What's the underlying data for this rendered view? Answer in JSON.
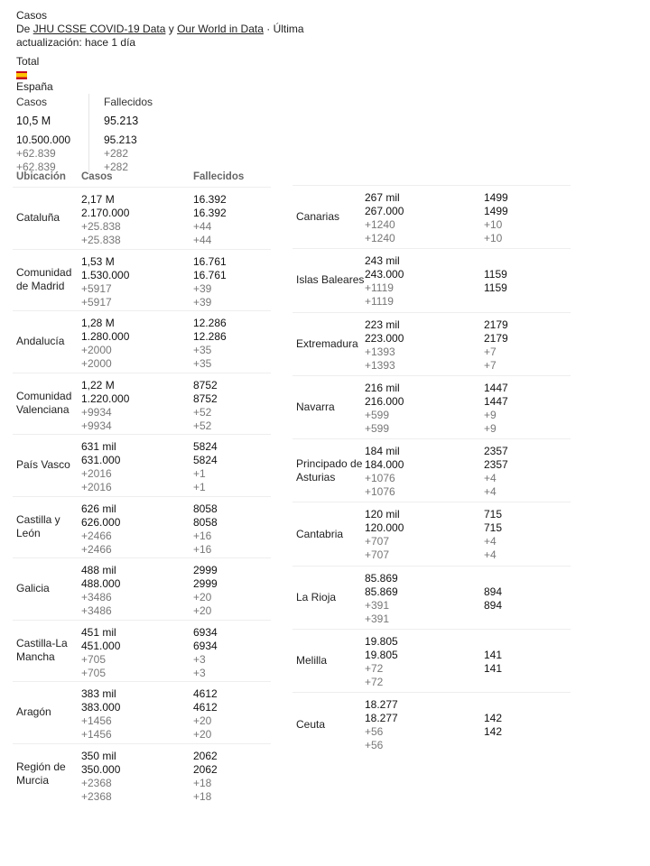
{
  "header": {
    "title": "Casos",
    "source_prefix": "De",
    "source1": "JHU CSSE COVID-19 Data",
    "source_and": "y",
    "source2": "Our World in Data",
    "updated": "· Última actualización: hace 1 día",
    "total_label": "Total",
    "flag_icon": "spain-flag-icon",
    "country": "España"
  },
  "summary": {
    "cases_label": "Casos",
    "deaths_label": "Fallecidos",
    "cases_short": "10,5 M",
    "cases_full": "10.500.000",
    "cases_delta": "+62.839",
    "deaths_short": "95.213",
    "deaths_full": "95.213",
    "deaths_delta": "+282"
  },
  "table_headers": {
    "location": "Ubicación",
    "cases": "Casos",
    "deaths": "Fallecidos"
  },
  "left_rows": [
    {
      "name": "Cataluña",
      "cases_short": "2,17 M",
      "cases_full": "2.170.000",
      "cases_delta": "+25.838",
      "deaths": "16.392",
      "deaths_delta": "+44"
    },
    {
      "name": "Comunidad de Madrid",
      "cases_short": "1,53 M",
      "cases_full": "1.530.000",
      "cases_delta": "+5917",
      "deaths": "16.761",
      "deaths_delta": "+39"
    },
    {
      "name": "Andalucía",
      "cases_short": "1,28 M",
      "cases_full": "1.280.000",
      "cases_delta": "+2000",
      "deaths": "12.286",
      "deaths_delta": "+35"
    },
    {
      "name": "Comunidad Valenciana",
      "cases_short": "1,22 M",
      "cases_full": "1.220.000",
      "cases_delta": "+9934",
      "deaths": "8752",
      "deaths_delta": "+52"
    },
    {
      "name": "País Vasco",
      "cases_short": "631 mil",
      "cases_full": "631.000",
      "cases_delta": "+2016",
      "deaths": "5824",
      "deaths_delta": "+1"
    },
    {
      "name": "Castilla y León",
      "cases_short": "626 mil",
      "cases_full": "626.000",
      "cases_delta": "+2466",
      "deaths": "8058",
      "deaths_delta": "+16"
    },
    {
      "name": "Galicia",
      "cases_short": "488 mil",
      "cases_full": "488.000",
      "cases_delta": "+3486",
      "deaths": "2999",
      "deaths_delta": "+20"
    },
    {
      "name": "Castilla-La Mancha",
      "cases_short": "451 mil",
      "cases_full": "451.000",
      "cases_delta": "+705",
      "deaths": "6934",
      "deaths_delta": "+3"
    },
    {
      "name": "Aragón",
      "cases_short": "383 mil",
      "cases_full": "383.000",
      "cases_delta": "+1456",
      "deaths": "4612",
      "deaths_delta": "+20"
    },
    {
      "name": "Región de Murcia",
      "cases_short": "350 mil",
      "cases_full": "350.000",
      "cases_delta": "+2368",
      "deaths": "2062",
      "deaths_delta": "+18"
    }
  ],
  "right_rows": [
    {
      "name": "Canarias",
      "cases_short": "267 mil",
      "cases_full": "267.000",
      "cases_delta": "+1240",
      "deaths": "1499",
      "deaths_delta": "+10"
    },
    {
      "name": "Islas Baleares",
      "cases_short": "243 mil",
      "cases_full": "243.000",
      "cases_delta": "+1119",
      "deaths": "1159",
      "deaths_delta": ""
    },
    {
      "name": "Extremadura",
      "cases_short": "223 mil",
      "cases_full": "223.000",
      "cases_delta": "+1393",
      "deaths": "2179",
      "deaths_delta": "+7"
    },
    {
      "name": "Navarra",
      "cases_short": "216 mil",
      "cases_full": "216.000",
      "cases_delta": "+599",
      "deaths": "1447",
      "deaths_delta": "+9"
    },
    {
      "name": "Principado de Asturias",
      "cases_short": "184 mil",
      "cases_full": "184.000",
      "cases_delta": "+1076",
      "deaths": "2357",
      "deaths_delta": "+4"
    },
    {
      "name": "Cantabria",
      "cases_short": "120 mil",
      "cases_full": "120.000",
      "cases_delta": "+707",
      "deaths": "715",
      "deaths_delta": "+4"
    },
    {
      "name": "La Rioja",
      "cases_short": "85.869",
      "cases_full": "85.869",
      "cases_delta": "+391",
      "deaths": "894",
      "deaths_delta": ""
    },
    {
      "name": "Melilla",
      "cases_short": "19.805",
      "cases_full": "19.805",
      "cases_delta": "+72",
      "deaths": "141",
      "deaths_delta": ""
    },
    {
      "name": "Ceuta",
      "cases_short": "18.277",
      "cases_full": "18.277",
      "cases_delta": "+56",
      "deaths": "142",
      "deaths_delta": ""
    }
  ]
}
